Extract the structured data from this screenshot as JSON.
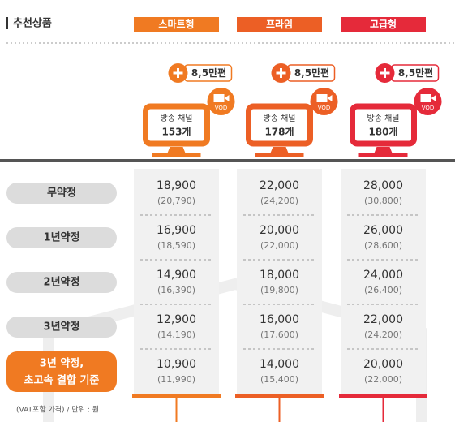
{
  "header": {
    "title": "추천상품"
  },
  "plans": [
    {
      "name": "스마트형",
      "color": "#f07a22",
      "badge": "8,5만편",
      "channel_label": "방송 채널",
      "channels": "153개",
      "vod": "VOD"
    },
    {
      "name": "프라임",
      "color": "#ec5f25",
      "badge": "8,5만편",
      "channel_label": "방송 채널",
      "channels": "178개",
      "vod": "VOD"
    },
    {
      "name": "고급형",
      "color": "#e52a3a",
      "badge": "8,5만편",
      "channel_label": "방송 채널",
      "channels": "180개",
      "vod": "VOD"
    }
  ],
  "rows": [
    {
      "label": [
        "무약정"
      ],
      "prices": [
        {
          "price": "18,900",
          "vat": "(20,790)"
        },
        {
          "price": "22,000",
          "vat": "(24,200)"
        },
        {
          "price": "28,000",
          "vat": "(30,800)"
        }
      ]
    },
    {
      "label": [
        "1년약정"
      ],
      "prices": [
        {
          "price": "16,900",
          "vat": "(18,590)"
        },
        {
          "price": "20,000",
          "vat": "(22,000)"
        },
        {
          "price": "26,000",
          "vat": "(28,600)"
        }
      ]
    },
    {
      "label": [
        "2년약정"
      ],
      "prices": [
        {
          "price": "14,900",
          "vat": "(16,390)"
        },
        {
          "price": "18,000",
          "vat": "(19,800)"
        },
        {
          "price": "24,000",
          "vat": "(26,400)"
        }
      ]
    },
    {
      "label": [
        "3년약정"
      ],
      "prices": [
        {
          "price": "12,900",
          "vat": "(14,190)"
        },
        {
          "price": "16,000",
          "vat": "(17,600)"
        },
        {
          "price": "22,000",
          "vat": "(24,200)"
        }
      ]
    },
    {
      "label": [
        "3년 약정,",
        "초고속 결합 기준"
      ],
      "prices": [
        {
          "price": "10,900",
          "vat": "(11,990)"
        },
        {
          "price": "14,000",
          "vat": "(15,400)"
        },
        {
          "price": "20,000",
          "vat": "(22,000)"
        }
      ]
    }
  ],
  "footer": {
    "note": "(VAT포함 가격) / 단위 : 원"
  }
}
